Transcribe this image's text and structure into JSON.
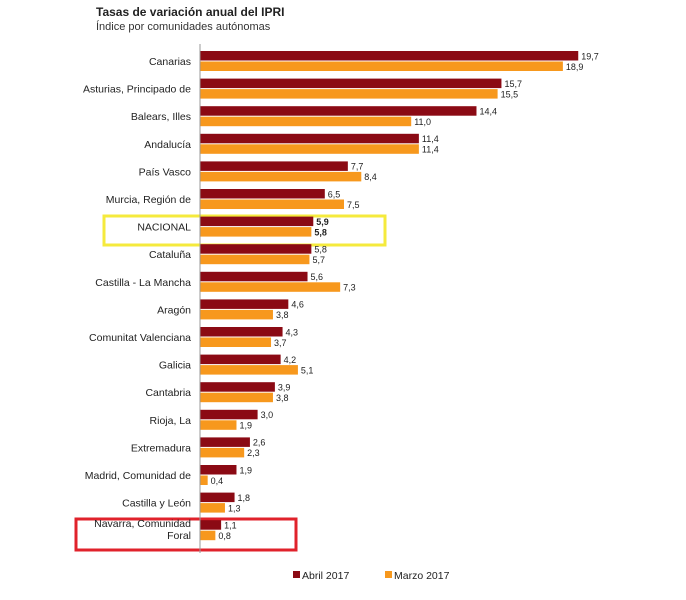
{
  "chart_data": {
    "type": "bar",
    "orientation": "horizontal",
    "title": "Tasas de variación anual del IPRI",
    "subtitle": "Índice por comunidades autónomas",
    "categories": [
      "Canarias",
      "Asturias, Principado de",
      "Balears, Illes",
      "Andalucía",
      "País Vasco",
      "Murcia, Región de",
      "NACIONAL",
      "Cataluña",
      "Castilla - La Mancha",
      "Aragón",
      "Comunitat Valenciana",
      "Galicia",
      "Cantabria",
      "Rioja, La",
      "Extremadura",
      "Madrid, Comunidad de",
      "Castilla y León",
      "Navarra, Comunidad Foral"
    ],
    "series": [
      {
        "name": "Abril 2017",
        "color": "#8b0a14",
        "values": [
          19.7,
          15.7,
          14.4,
          11.4,
          7.7,
          6.5,
          5.9,
          5.8,
          5.6,
          4.6,
          4.3,
          4.2,
          3.9,
          3.0,
          2.6,
          1.9,
          1.8,
          1.1
        ],
        "labels": [
          "19,7",
          "15,7",
          "14,4",
          "11,4",
          "7,7",
          "6,5",
          "5,9",
          "5,8",
          "5,6",
          "4,6",
          "4,3",
          "4,2",
          "3,9",
          "3,0",
          "2,6",
          "1,9",
          "1,8",
          "1,1"
        ]
      },
      {
        "name": "Marzo 2017",
        "color": "#f7981d",
        "values": [
          18.9,
          15.5,
          11.0,
          11.4,
          8.4,
          7.5,
          5.8,
          5.7,
          7.3,
          3.8,
          3.7,
          5.1,
          3.8,
          1.9,
          2.3,
          0.4,
          1.3,
          0.8
        ],
        "labels": [
          "18,9",
          "15,5",
          "11,0",
          "11,4",
          "8,4",
          "7,5",
          "5,8",
          "5,7",
          "7,3",
          "3,8",
          "3,7",
          "5,1",
          "3,8",
          "1,9",
          "2,3",
          "0,4",
          "1,3",
          "0,8"
        ]
      }
    ],
    "xlim": [
      0,
      20
    ],
    "legend_position": "bottom",
    "highlights": [
      {
        "category": "NACIONAL",
        "color": "#f5ea3c"
      },
      {
        "category": "Navarra, Comunidad Foral",
        "color": "#e0222b"
      }
    ]
  }
}
